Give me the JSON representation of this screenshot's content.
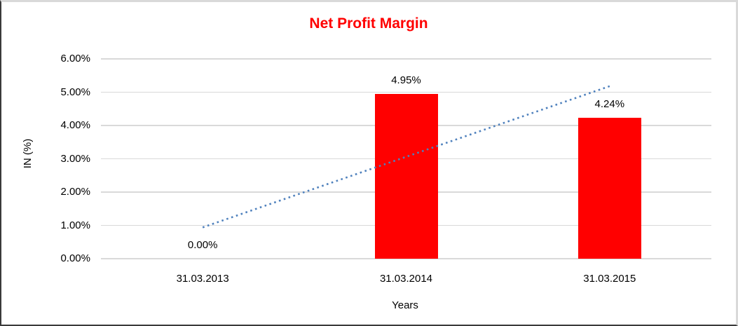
{
  "chart_data": {
    "type": "bar",
    "title": "Net Profit Margin",
    "title_color": "#ff0000",
    "xlabel": "Years",
    "ylabel": "IN (%)",
    "categories": [
      "31.03.2013",
      "31.03.2014",
      "31.03.2015"
    ],
    "values": [
      0.0,
      4.95,
      4.24
    ],
    "data_labels": [
      "0.00%",
      "4.95%",
      "4.24%"
    ],
    "ylim": [
      0,
      6
    ],
    "ytick_labels": [
      "0.00%",
      "1.00%",
      "2.00%",
      "3.00%",
      "4.00%",
      "5.00%",
      "6.00%"
    ],
    "grid": true,
    "legend": "none",
    "bar_color": "#ff0000",
    "gridline_color": "#d9d9d9",
    "trendline": {
      "type": "linear",
      "style": "dotted",
      "color": "#4f81bd",
      "start_value": 0.94,
      "end_value": 5.18
    }
  }
}
